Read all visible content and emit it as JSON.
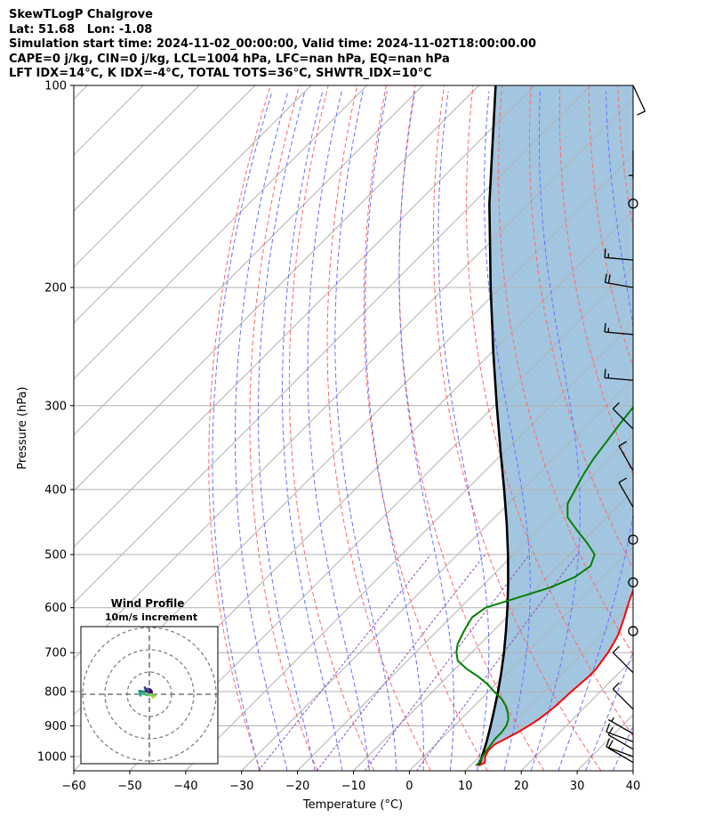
{
  "header": {
    "lines": [
      "SkewTLogP Chalgrove",
      "Lat: 51.68   Lon: -1.08",
      "Simulation start time: 2024-11-02_00:00:00, Valid time: 2024-11-02T18:00:00.00",
      "CAPE=0 j/kg, CIN=0 j/kg, LCL=1004 hPa, LFC=nan hPa, EQ=nan hPa",
      "LFT IDX=14$^\\circ$C, K IDX=-4$^\\circ$C, TOTAL TOTS=36$^\\circ$C, SHWTR_IDX=10$^\\circ$C"
    ]
  },
  "chart_data": {
    "type": "line",
    "subtype": "skew-T log-p diagram",
    "xlabel": "Temperature ($^\\circ$C)",
    "ylabel": "Pressure (hPa)",
    "xlim": [
      -60,
      40
    ],
    "ylim": [
      1050,
      100
    ],
    "x_ticks": [
      -60,
      -50,
      -40,
      -30,
      -20,
      -10,
      0,
      10,
      20,
      30,
      40
    ],
    "x_tick_labels": [
      "−60",
      "−50",
      "−40",
      "−30",
      "−20",
      "−10",
      "0",
      "10",
      "20",
      "30",
      "40"
    ],
    "y_ticks": [
      1000,
      900,
      800,
      700,
      600,
      500,
      400,
      300,
      200,
      100
    ],
    "y_tick_labels": [
      "1000",
      "900",
      "800",
      "700",
      "600",
      "500",
      "400",
      "300",
      "200",
      "100"
    ],
    "grid": true,
    "y_scale": "log",
    "series": [
      {
        "role": "temperature",
        "color": "#ff0000",
        "points": [
          [
            1032,
            11.5
          ],
          [
            1020,
            12
          ],
          [
            1000,
            11
          ],
          [
            980,
            10.5
          ],
          [
            960,
            10.5
          ],
          [
            940,
            11.5
          ],
          [
            920,
            12.5
          ],
          [
            900,
            13.3
          ],
          [
            880,
            13.9
          ],
          [
            860,
            14.3
          ],
          [
            840,
            14.6
          ],
          [
            800,
            14.8
          ],
          [
            780,
            15
          ],
          [
            760,
            15.2
          ],
          [
            740,
            15.2
          ],
          [
            720,
            14.8
          ],
          [
            700,
            14.4
          ],
          [
            680,
            13.8
          ],
          [
            660,
            13.1
          ],
          [
            640,
            12.1
          ],
          [
            620,
            11
          ],
          [
            600,
            9.8
          ],
          [
            580,
            8.6
          ],
          [
            560,
            7.5
          ],
          [
            540,
            6.5
          ],
          [
            520,
            5.6
          ],
          [
            500,
            4.6
          ],
          [
            480,
            3.6
          ],
          [
            460,
            2.6
          ],
          [
            440,
            1.6
          ],
          [
            420,
            0.4
          ],
          [
            400,
            -0.9
          ],
          [
            380,
            -2.2
          ],
          [
            360,
            -3.6
          ],
          [
            340,
            -5
          ],
          [
            320,
            -6.4
          ],
          [
            300,
            -8
          ],
          [
            280,
            -9.8
          ],
          [
            260,
            -11.7
          ],
          [
            245,
            -13.3
          ],
          [
            230,
            -15.3
          ],
          [
            215,
            -17.5
          ],
          [
            200,
            -20
          ],
          [
            185,
            -22.2
          ],
          [
            176,
            -23.5
          ],
          [
            168,
            -23.8
          ],
          [
            160,
            -23
          ],
          [
            150,
            -22.4
          ],
          [
            140,
            -21.6
          ],
          [
            130,
            -20.5
          ],
          [
            120,
            -19.8
          ],
          [
            110,
            -19.2
          ],
          [
            100,
            -18.6
          ]
        ]
      },
      {
        "role": "dewpoint",
        "color": "#008000",
        "points": [
          [
            1032,
            11
          ],
          [
            1020,
            11
          ],
          [
            1000,
            10.5
          ],
          [
            980,
            10.2
          ],
          [
            960,
            9.9
          ],
          [
            940,
            9.6
          ],
          [
            920,
            9.6
          ],
          [
            900,
            9.3
          ],
          [
            880,
            8.5
          ],
          [
            860,
            7.2
          ],
          [
            840,
            5.6
          ],
          [
            820,
            3.6
          ],
          [
            800,
            1
          ],
          [
            780,
            -1.5
          ],
          [
            760,
            -4.5
          ],
          [
            740,
            -8
          ],
          [
            720,
            -11
          ],
          [
            700,
            -12.7
          ],
          [
            680,
            -14
          ],
          [
            650,
            -15.2
          ],
          [
            620,
            -16.2
          ],
          [
            600,
            -15.5
          ],
          [
            560,
            -7.6
          ],
          [
            540,
            -5
          ],
          [
            520,
            -4.2
          ],
          [
            500,
            -5.5
          ],
          [
            480,
            -9
          ],
          [
            460,
            -13
          ],
          [
            440,
            -17
          ],
          [
            420,
            -19.4
          ],
          [
            400,
            -20.6
          ],
          [
            380,
            -21.8
          ],
          [
            360,
            -22.8
          ],
          [
            340,
            -23.5
          ],
          [
            320,
            -24.3
          ],
          [
            300,
            -25
          ],
          [
            290,
            -23.5
          ],
          [
            280,
            -25
          ],
          [
            270,
            -27.2
          ],
          [
            260,
            -30
          ],
          [
            250,
            -32.5
          ],
          [
            240,
            -35
          ],
          [
            230,
            -37
          ],
          [
            220,
            -38.5
          ],
          [
            210,
            -40
          ],
          [
            200,
            -41
          ],
          [
            190,
            -42.5
          ],
          [
            180,
            -44
          ],
          [
            170,
            -46
          ],
          [
            160,
            -46.5
          ],
          [
            150,
            -46.6
          ],
          [
            140,
            -45
          ],
          [
            130,
            -44.3
          ],
          [
            125,
            -44.5
          ],
          [
            120,
            -46.3
          ],
          [
            115,
            -47.5
          ],
          [
            110,
            -47.5
          ],
          [
            105,
            -46
          ],
          [
            100,
            -42
          ]
        ]
      },
      {
        "role": "parcel profile",
        "color": "#000000",
        "points": [
          [
            1032,
            11.5
          ],
          [
            1004,
            10.6
          ],
          [
            950,
            8.6
          ],
          [
            900,
            6.5
          ],
          [
            850,
            4.2
          ],
          [
            800,
            1.7
          ],
          [
            750,
            -1.1
          ],
          [
            700,
            -4.2
          ],
          [
            650,
            -7.7
          ],
          [
            600,
            -11.6
          ],
          [
            550,
            -16
          ],
          [
            500,
            -21
          ],
          [
            450,
            -26.7
          ],
          [
            400,
            -33.3
          ],
          [
            350,
            -40.9
          ],
          [
            300,
            -49.6
          ],
          [
            250,
            -59.7
          ],
          [
            200,
            -71.8
          ],
          [
            150,
            -87
          ],
          [
            100,
            -107
          ]
        ]
      },
      {
        "role": "hodograph",
        "title": "Wind Profile",
        "subtitle": "10m/s increment",
        "u_ms": [
          1.5,
          1.5,
          1.5,
          2.5,
          -1,
          -4,
          -4,
          -4.5,
          -2,
          0.5,
          -0.5,
          -1.5,
          -2,
          -1.5,
          -0.5,
          1,
          1,
          0.3
        ],
        "v_ms": [
          -1.5,
          -1.5,
          -1,
          -0.6,
          -0.3,
          0.5,
          -0.5,
          1.5,
          1.1,
          1.6,
          2.5,
          2.1,
          3,
          1.5,
          1,
          0.8,
          1.3,
          2.2
        ],
        "increment_ms": 10,
        "rings_ms": [
          10,
          20,
          30
        ]
      }
    ],
    "reference_lines": {
      "dry_adiabats": "red dashed",
      "moist_adiabats": "blue dashed",
      "mixing_ratio": "purple dashed",
      "isotherms": "gray solid skewed"
    },
    "shading": {
      "between": "temperature and parcel profile",
      "color": "#a3c6e0"
    },
    "wind_barbs": [
      {
        "p": 100,
        "direction_deg": 155,
        "speed_kt": 10
      },
      {
        "p": 125,
        "direction_deg": 180,
        "speed_kt": 5
      },
      {
        "p": 150,
        "direction_deg": 0,
        "speed_kt": 0
      },
      {
        "p": 182,
        "direction_deg": 275,
        "speed_kt": 15
      },
      {
        "p": 200,
        "direction_deg": 280,
        "speed_kt": 20
      },
      {
        "p": 235,
        "direction_deg": 275,
        "speed_kt": 15
      },
      {
        "p": 275,
        "direction_deg": 275,
        "speed_kt": 15
      },
      {
        "p": 325,
        "direction_deg": 315,
        "speed_kt": 10
      },
      {
        "p": 375,
        "direction_deg": 330,
        "speed_kt": 10
      },
      {
        "p": 425,
        "direction_deg": 330,
        "speed_kt": 10
      },
      {
        "p": 475,
        "direction_deg": 0,
        "speed_kt": 0
      },
      {
        "p": 550,
        "direction_deg": 0,
        "speed_kt": 0
      },
      {
        "p": 650,
        "direction_deg": 0,
        "speed_kt": 0
      },
      {
        "p": 750,
        "direction_deg": 315,
        "speed_kt": 10
      },
      {
        "p": 850,
        "direction_deg": 315,
        "speed_kt": 10
      },
      {
        "p": 925,
        "direction_deg": 300,
        "speed_kt": 5
      },
      {
        "p": 950,
        "direction_deg": 290,
        "speed_kt": 10
      },
      {
        "p": 975,
        "direction_deg": 300,
        "speed_kt": 10
      },
      {
        "p": 1000,
        "direction_deg": 290,
        "speed_kt": 10
      },
      {
        "p": 1020,
        "direction_deg": 300,
        "speed_kt": 10
      }
    ]
  }
}
